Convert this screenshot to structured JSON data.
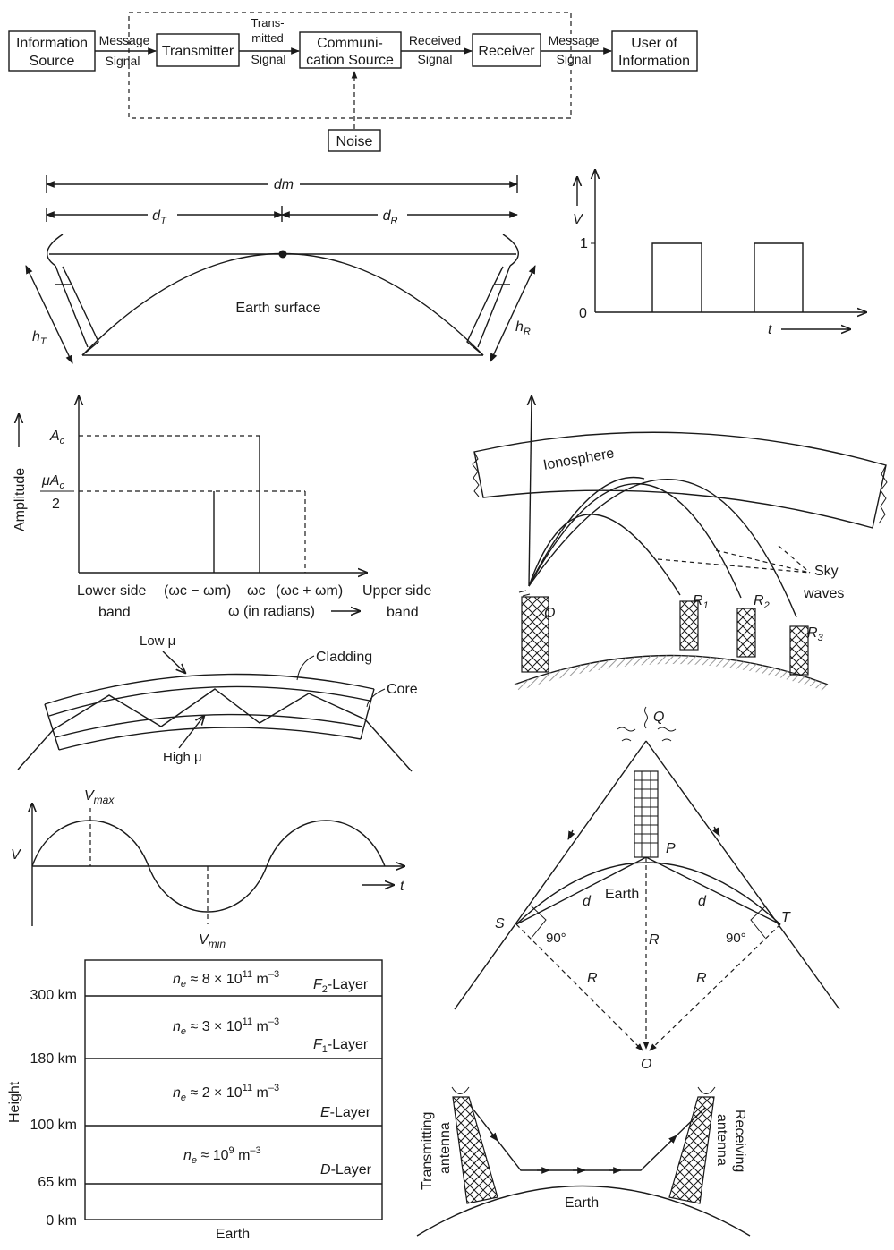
{
  "block_diagram": {
    "information_source": [
      "Information",
      "Source"
    ],
    "message_signal_1": [
      "Message",
      "Signal"
    ],
    "transmitter": "Transmitter",
    "transmitted_signal": [
      "Trans-",
      "mitted",
      "Signal"
    ],
    "communication_source": [
      "Communi-",
      "cation Source"
    ],
    "received_signal": [
      "Received",
      "Signal"
    ],
    "receiver": "Receiver",
    "message_signal_2": [
      "Message",
      "Signal"
    ],
    "user": [
      "User of",
      "Information"
    ],
    "noise": "Noise"
  },
  "line_of_sight": {
    "dm": "dm",
    "dT": "d",
    "dT_sub": "T",
    "dR": "d",
    "dR_sub": "R",
    "earth_surface": "Earth surface",
    "hT": "h",
    "hT_sub": "T",
    "hR": "h",
    "hR_sub": "R"
  },
  "pulse_graph": {
    "v": "V",
    "one": "1",
    "zero": "0",
    "t": "t"
  },
  "am_spectrum": {
    "ylabel": "Amplitude",
    "ac": "A",
    "ac_sub": "c",
    "mu_ac": "μA",
    "mu_ac_sub": "c",
    "two": "2",
    "lower_side": [
      "Lower side",
      "band"
    ],
    "wc_minus_wm": "(ωc − ωm)",
    "wc": "ωc",
    "wc_plus_wm": "(ωc + ωm)",
    "upper_side": [
      "Upper side",
      "band"
    ],
    "omega_axis": "ω (in radians)"
  },
  "sky_waves": {
    "ionosphere": "Ionosphere",
    "sky_waves": [
      "Sky",
      "waves"
    ],
    "o": "O",
    "r1": "R",
    "r1_sub": "1",
    "r2": "R",
    "r2_sub": "2",
    "r3": "R",
    "r3_sub": "3"
  },
  "optical_fibre": {
    "low_mu": "Low μ",
    "cladding": "Cladding",
    "core": "Core",
    "high_mu": "High μ"
  },
  "sine_wave": {
    "vmax": "V",
    "vmax_sub": "max",
    "v": "V",
    "t": "t",
    "vmin": "V",
    "vmin_sub": "min"
  },
  "tv_tower": {
    "q": "Q",
    "p": "P",
    "earth": "Earth",
    "d_left": "d",
    "d_right": "d",
    "s": "S",
    "t": "T",
    "angle_left": "90°",
    "angle_right": "90°",
    "r_center": "R",
    "r_left": "R",
    "r_right": "R",
    "o": "O"
  },
  "ionosphere_layers": {
    "ylabel": "Height",
    "heights": [
      "300 km",
      "180 km",
      "100 km",
      "65 km",
      "0 km"
    ],
    "earth": "Earth",
    "layers": [
      {
        "density": "n",
        "sub": "e",
        "rest": " ≈ 8 × 10",
        "exp": "11",
        "unit": " m",
        "unit_exp": "–3",
        "name": "F",
        "name_sub": "2",
        "name_rest": "-Layer"
      },
      {
        "density": "n",
        "sub": "e",
        "rest": " ≈ 3 × 10",
        "exp": "11",
        "unit": " m",
        "unit_exp": "–3",
        "name": "F",
        "name_sub": "1",
        "name_rest": "-Layer"
      },
      {
        "density": "n",
        "sub": "e",
        "rest": " ≈ 2 × 10",
        "exp": "11",
        "unit": " m",
        "unit_exp": "–3",
        "name": "E",
        "name_sub": "",
        "name_rest": "-Layer"
      },
      {
        "density": "n",
        "sub": "e",
        "rest": " ≈ 10",
        "exp": "9",
        "unit": " m",
        "unit_exp": "–3",
        "name": "D",
        "name_sub": "",
        "name_rest": "-Layer"
      }
    ]
  },
  "space_wave": {
    "transmitting": [
      "Transmitting",
      "antenna"
    ],
    "receiving": [
      "Receiving",
      "antenna"
    ],
    "earth": "Earth"
  }
}
